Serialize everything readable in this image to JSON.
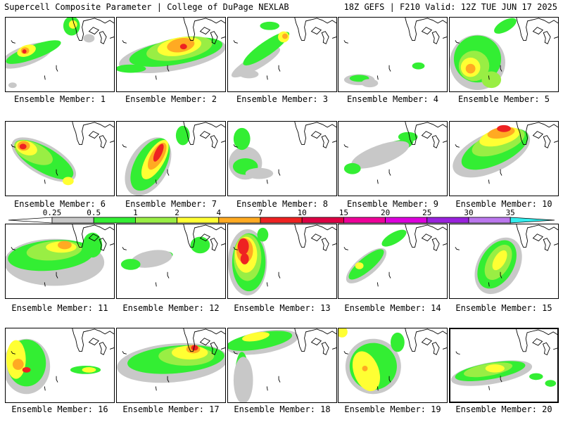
{
  "header": {
    "left_title": "Supercell Composite Parameter | College of DuPage NEXLAB",
    "right_title": "18Z GEFS | F210 Valid: 12Z TUE JUN 17 2025"
  },
  "colorbar": {
    "ticks": [
      "0.25",
      "0.5",
      "1",
      "2",
      "4",
      "7",
      "10",
      "15",
      "20",
      "25",
      "30",
      "35"
    ],
    "colors": [
      "#c8c8c8",
      "#33ee33",
      "#99ee44",
      "#ffff33",
      "#ffaa22",
      "#ee2222",
      "#dd0044",
      "#ee0099",
      "#dd00dd",
      "#9922dd",
      "#bb77ee",
      "#33eeee"
    ]
  },
  "fill_colors": {
    "gray": "#c8c8c8",
    "green": "#33ee33",
    "lightgreen": "#99ee44",
    "yellow": "#ffff33",
    "orange": "#ffaa22",
    "red": "#ee2222"
  },
  "members": [
    {
      "label": "Ensemble Member: 1"
    },
    {
      "label": "Ensemble Member: 2"
    },
    {
      "label": "Ensemble Member: 3"
    },
    {
      "label": "Ensemble Member: 4"
    },
    {
      "label": "Ensemble Member: 5"
    },
    {
      "label": "Ensemble Member: 6"
    },
    {
      "label": "Ensemble Member: 7"
    },
    {
      "label": "Ensemble Member: 8"
    },
    {
      "label": "Ensemble Member: 9"
    },
    {
      "label": "Ensemble Member: 10"
    },
    {
      "label": "Ensemble Member: 11"
    },
    {
      "label": "Ensemble Member: 12"
    },
    {
      "label": "Ensemble Member: 13"
    },
    {
      "label": "Ensemble Member: 14"
    },
    {
      "label": "Ensemble Member: 15"
    },
    {
      "label": "Ensemble Member: 16"
    },
    {
      "label": "Ensemble Member: 17"
    },
    {
      "label": "Ensemble Member: 18"
    },
    {
      "label": "Ensemble Member: 19"
    },
    {
      "label": "Ensemble Member: 20"
    }
  ]
}
